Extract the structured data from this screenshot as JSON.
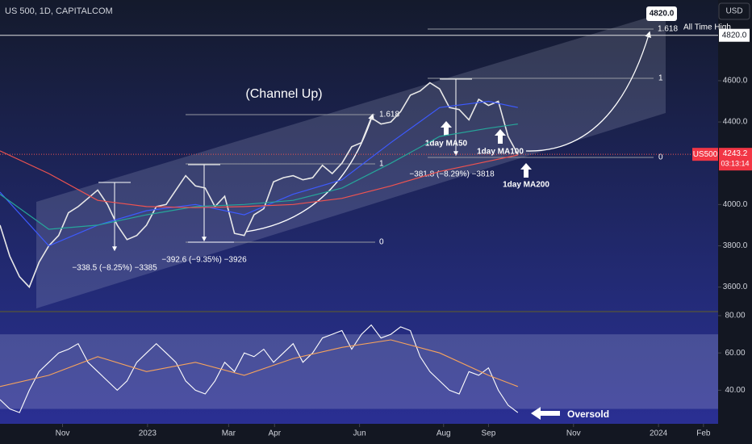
{
  "chart_data": {
    "type": "line",
    "title": "US 500, 1D, CAPITALCOM",
    "currency": "USD",
    "xlim": [
      0,
      73.5
    ],
    "xticks": [
      {
        "value": 6.4,
        "label": "Nov"
      },
      {
        "value": 15.1,
        "label": "2023"
      },
      {
        "value": 23.4,
        "label": "Mar"
      },
      {
        "value": 28.1,
        "label": "Apr"
      },
      {
        "value": 36.8,
        "label": "Jun"
      },
      {
        "value": 45.4,
        "label": "Aug"
      },
      {
        "value": 50,
        "label": "Sep"
      },
      {
        "value": 58.7,
        "label": "Nov"
      },
      {
        "value": 67.4,
        "label": "2024"
      },
      {
        "value": 72,
        "label": "Feb"
      }
    ],
    "ylim": [
      3485,
      4991
    ],
    "yticks": [
      {
        "value": 3600,
        "label": "3600.0"
      },
      {
        "value": 3800,
        "label": "3800.0"
      },
      {
        "value": 4000,
        "label": "4000.0"
      },
      {
        "value": 4400,
        "label": "4400.0"
      },
      {
        "value": 4600,
        "label": "4600.0"
      }
    ],
    "series": [
      {
        "name": "US500",
        "color": "#e8e8e8",
        "values": [
          3900,
          3750,
          3650,
          3600,
          3720,
          3800,
          3850,
          3960,
          3990,
          4030,
          4070,
          4000,
          3900,
          3830,
          3850,
          3900,
          3990,
          4000,
          4070,
          4140,
          4090,
          4080,
          3990,
          4040,
          3860,
          3850,
          3950,
          3980,
          4110,
          4130,
          4140,
          4120,
          4130,
          4190,
          4150,
          4200,
          4280,
          4300,
          4420,
          4390,
          4400,
          4450,
          4530,
          4550,
          4590,
          4560,
          4470,
          4460,
          4410,
          4510,
          4480,
          4500,
          4330,
          4243
        ]
      },
      {
        "name": "1day MA50",
        "color": "#3d5afe",
        "x": [
          0,
          5,
          10,
          15,
          20,
          25,
          30,
          35,
          40,
          45,
          50,
          53
        ],
        "values": [
          4060,
          3800,
          3900,
          3970,
          4000,
          3950,
          4050,
          4120,
          4300,
          4470,
          4500,
          4470
        ]
      },
      {
        "name": "1day MA100",
        "color": "#26a69a",
        "x": [
          0,
          5,
          10,
          15,
          20,
          25,
          30,
          35,
          40,
          45,
          50,
          53
        ],
        "values": [
          4050,
          3880,
          3900,
          3950,
          3990,
          4000,
          4020,
          4080,
          4200,
          4330,
          4370,
          4390
        ]
      },
      {
        "name": "1day MA200",
        "color": "#ef5350",
        "x": [
          0,
          5,
          10,
          15,
          20,
          25,
          30,
          35,
          40,
          45,
          50,
          53
        ],
        "values": [
          4260,
          4150,
          4020,
          3990,
          3985,
          3990,
          4000,
          4030,
          4090,
          4160,
          4210,
          4240
        ]
      }
    ],
    "last_price": {
      "value": 4243.2,
      "label": "4243.2",
      "countdown": "03:13:14"
    },
    "ath": {
      "value": 4820,
      "label": "4820.0",
      "text": "All Time High"
    },
    "annotations": {
      "channel": "(Channel Up)",
      "fib_a": [
        "1.618",
        "1",
        "0"
      ],
      "fib_b": [
        "1.618",
        "1",
        "0"
      ],
      "drops": [
        "−338.5 (−8.25%) −3385",
        "−392.6 (−9.35%) −3926",
        "−381.8 (−8.29%) −3818"
      ],
      "oversold": "Oversold"
    },
    "rsi": {
      "ylim": [
        22,
        81.3
      ],
      "yticks": [
        {
          "value": 40,
          "label": "40.00"
        },
        {
          "value": 60,
          "label": "60.00"
        },
        {
          "value": 80,
          "label": "80.00"
        }
      ],
      "band": [
        30,
        70
      ],
      "series": [
        {
          "color": "#ffffff",
          "values": [
            35,
            30,
            28,
            40,
            50,
            55,
            60,
            62,
            65,
            55,
            50,
            45,
            40,
            45,
            55,
            60,
            65,
            60,
            55,
            45,
            40,
            38,
            45,
            55,
            50,
            60,
            58,
            62,
            55,
            60,
            65,
            55,
            60,
            68,
            70,
            72,
            62,
            70,
            75,
            68,
            70,
            74,
            72,
            58,
            50,
            45,
            40,
            38,
            50,
            48,
            52,
            40,
            32,
            28
          ]
        },
        {
          "color": "#f7a35c",
          "x": [
            0,
            5,
            10,
            15,
            20,
            25,
            30,
            35,
            40,
            45,
            50,
            53
          ],
          "values": [
            42,
            48,
            58,
            50,
            55,
            48,
            57,
            63,
            67,
            60,
            48,
            42
          ]
        }
      ]
    }
  }
}
